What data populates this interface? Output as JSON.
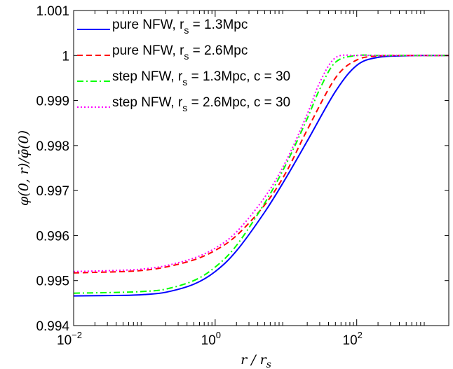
{
  "chart_data": {
    "type": "line",
    "xscale": "log",
    "xlim": [
      0.01,
      2000
    ],
    "ylim": [
      0.994,
      1.001
    ],
    "xticks": [
      {
        "base": "10",
        "exp": "−2",
        "value": 0.01
      },
      {
        "base": "10",
        "exp": "0",
        "value": 1
      },
      {
        "base": "10",
        "exp": "2",
        "value": 100
      }
    ],
    "yticks": [
      {
        "label": "1.001",
        "value": 1.001
      },
      {
        "label": "1",
        "value": 1.0
      },
      {
        "label": "0.999",
        "value": 0.999
      },
      {
        "label": "0.998",
        "value": 0.998
      },
      {
        "label": "0.997",
        "value": 0.997
      },
      {
        "label": "0.996",
        "value": 0.996
      },
      {
        "label": "0.995",
        "value": 0.995
      },
      {
        "label": "0.994",
        "value": 0.994
      }
    ],
    "xlabel": "r / r_s",
    "ylabel": "φ(0, r)/φ̄(0)",
    "legend_position": "top-left",
    "series": [
      {
        "name_main": "pure NFW, r",
        "name_sub": "s",
        "name_rest": " = 1.3Mpc",
        "color": "#0000ff",
        "dash": "solid",
        "x": [
          0.01,
          0.05,
          0.1,
          0.2,
          0.5,
          1,
          2,
          5,
          10,
          20,
          50,
          100,
          200,
          500,
          1000,
          2000
        ],
        "y": [
          0.99466,
          0.99467,
          0.99469,
          0.99474,
          0.99492,
          0.9952,
          0.99566,
          0.99652,
          0.99728,
          0.9981,
          0.9992,
          0.99978,
          0.99996,
          0.999995,
          1.0,
          1.0
        ]
      },
      {
        "name_main": "pure NFW, r",
        "name_sub": "s",
        "name_rest": " = 2.6Mpc",
        "color": "#ff0000",
        "dash": "dashed",
        "x": [
          0.01,
          0.05,
          0.1,
          0.2,
          0.5,
          1,
          2,
          5,
          10,
          20,
          50,
          100,
          200,
          500,
          1000,
          2000
        ],
        "y": [
          0.99517,
          0.9952,
          0.99523,
          0.9953,
          0.99546,
          0.99567,
          0.996,
          0.99668,
          0.9974,
          0.99835,
          0.9995,
          0.9999,
          0.99999,
          1.0,
          1.0,
          1.0
        ]
      },
      {
        "name_main": "step NFW, r",
        "name_sub": "s",
        "name_rest": " = 1.3Mpc, c = 30",
        "color": "#00ff00",
        "dash": "dashdot",
        "x": [
          0.01,
          0.05,
          0.1,
          0.2,
          0.5,
          1,
          2,
          5,
          10,
          20,
          30,
          50,
          100,
          200,
          500,
          2000
        ],
        "y": [
          0.99472,
          0.99474,
          0.99476,
          0.99481,
          0.995,
          0.9953,
          0.99578,
          0.99672,
          0.99758,
          0.9986,
          0.99925,
          0.99985,
          1.0,
          1.0,
          1.0,
          1.0
        ]
      },
      {
        "name_main": "step NFW, r",
        "name_sub": "s",
        "name_rest": " = 2.6Mpc, c = 30",
        "color": "#ff00ff",
        "dash": "dotted",
        "x": [
          0.01,
          0.05,
          0.1,
          0.2,
          0.5,
          1,
          2,
          5,
          10,
          20,
          30,
          50,
          100,
          200,
          500,
          2000
        ],
        "y": [
          0.9952,
          0.99523,
          0.99526,
          0.99533,
          0.9955,
          0.99572,
          0.99608,
          0.99685,
          0.99765,
          0.9987,
          0.9994,
          0.99995,
          1.0,
          1.0,
          1.0,
          1.0
        ]
      }
    ]
  }
}
